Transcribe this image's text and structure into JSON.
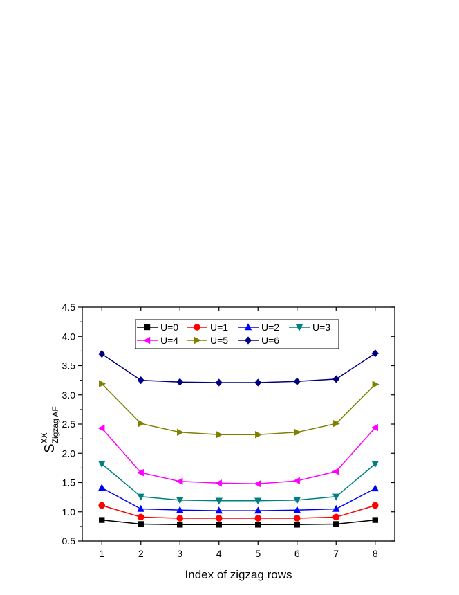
{
  "chart_data": {
    "type": "line",
    "xlabel": "Index of zigzag rows",
    "ylabel": {
      "base": "S",
      "sup": "XX",
      "sub": "Zigzag AF"
    },
    "x": [
      1,
      2,
      3,
      4,
      5,
      6,
      7,
      8
    ],
    "xlim": [
      0.5,
      8.5
    ],
    "ylim": [
      0.5,
      4.5
    ],
    "yticks": [
      "0.5",
      "1.0",
      "1.5",
      "2.0",
      "2.5",
      "3.0",
      "3.5",
      "4.0",
      "4.5"
    ],
    "xticks": [
      "1",
      "2",
      "3",
      "4",
      "5",
      "6",
      "7",
      "8"
    ],
    "grid": false,
    "legend_position": "top-center",
    "series": [
      {
        "name": "U=0",
        "color": "#000000",
        "marker": "square",
        "values": [
          0.86,
          0.79,
          0.78,
          0.78,
          0.78,
          0.78,
          0.79,
          0.86
        ]
      },
      {
        "name": "U=1",
        "color": "#ff0000",
        "marker": "circle",
        "values": [
          1.11,
          0.91,
          0.89,
          0.89,
          0.89,
          0.89,
          0.91,
          1.11
        ]
      },
      {
        "name": "U=2",
        "color": "#0000ff",
        "marker": "triangle-up",
        "values": [
          1.41,
          1.05,
          1.03,
          1.02,
          1.02,
          1.03,
          1.05,
          1.4
        ]
      },
      {
        "name": "U=3",
        "color": "#008080",
        "marker": "triangle-down",
        "values": [
          1.82,
          1.26,
          1.2,
          1.19,
          1.19,
          1.2,
          1.26,
          1.82
        ]
      },
      {
        "name": "U=4",
        "color": "#ff00ff",
        "marker": "triangle-left",
        "values": [
          2.43,
          1.67,
          1.52,
          1.49,
          1.48,
          1.53,
          1.69,
          2.44
        ]
      },
      {
        "name": "U=5",
        "color": "#808000",
        "marker": "triangle-right",
        "values": [
          3.19,
          2.51,
          2.36,
          2.32,
          2.32,
          2.36,
          2.51,
          3.18
        ]
      },
      {
        "name": "U=6",
        "color": "#000080",
        "marker": "diamond",
        "values": [
          3.7,
          3.25,
          3.22,
          3.21,
          3.21,
          3.23,
          3.27,
          3.71
        ]
      }
    ]
  }
}
